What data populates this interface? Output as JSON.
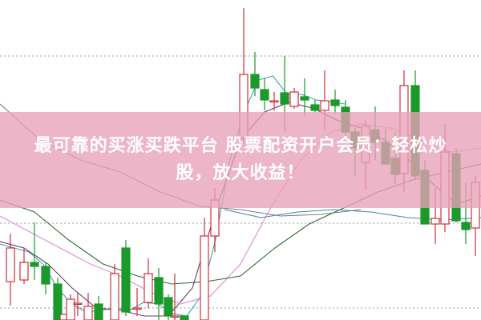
{
  "banner": {
    "line1": "最可靠的买涨买跌平台 股票配资开户会员：轻松炒",
    "line2": "股，放大收益！"
  },
  "chart_data": {
    "type": "candlestick",
    "title": "",
    "xlabel": "",
    "ylabel": "",
    "ylim": [
      0,
      100
    ],
    "grid": "dotted horizontal",
    "colors": {
      "up": "#d0303a",
      "down": "#1a9a2a",
      "ma_short": "#3aa6b0",
      "ma_mid": "#6a3a6a",
      "ma_20": "#e08ad8",
      "ma_30": "#2f6a3a",
      "ma_long": "#7a7a8a",
      "ma_flat": "#3a8aa0",
      "banner": "#e8a0b9"
    },
    "gridlines": [
      82.5,
      30.25,
      3.75
    ],
    "candles": [
      {
        "o": 12,
        "c": 22.5,
        "h": 27,
        "l": 4.5
      },
      {
        "o": 12.5,
        "c": 18,
        "h": 22.5,
        "l": 11.25
      },
      {
        "o": 18,
        "c": 16.75,
        "h": 30.5,
        "l": 12.5
      },
      {
        "o": 16.75,
        "c": 11.25,
        "h": 18,
        "l": 8
      },
      {
        "o": 11.25,
        "c": 0,
        "h": 13.25,
        "l": 0
      },
      {
        "o": 0,
        "c": 1.75,
        "h": 1.75,
        "l": 0
      },
      {
        "o": 0,
        "c": 6.5,
        "h": 8,
        "l": 0
      },
      {
        "o": 5.25,
        "c": 5.25,
        "h": 8.5,
        "l": 1.25
      },
      {
        "o": 0,
        "c": 4.25,
        "h": 8.5,
        "l": 0
      },
      {
        "o": 5,
        "c": 0,
        "h": 7.5,
        "l": 0
      },
      {
        "o": 0,
        "c": 14.5,
        "h": 17.5,
        "l": 0
      },
      {
        "o": 22.5,
        "c": 2.5,
        "h": 25,
        "l": 1.25
      },
      {
        "o": 3.75,
        "c": 3.75,
        "h": 10,
        "l": 1.25
      },
      {
        "o": 5.5,
        "c": 14.5,
        "h": 19.25,
        "l": 3.75
      },
      {
        "o": 13.25,
        "c": 5,
        "h": 16.25,
        "l": 0
      },
      {
        "o": 7,
        "c": 1.25,
        "h": 8,
        "l": 0
      },
      {
        "o": 1.25,
        "c": 1.25,
        "h": 14.5,
        "l": 0
      },
      {
        "o": 1.25,
        "c": 0,
        "h": 1.25,
        "l": 0
      },
      {
        "o": 0,
        "c": 26.25,
        "h": 32,
        "l": 0
      },
      {
        "o": 26.25,
        "c": 37.5,
        "h": 41.25,
        "l": 21.25
      },
      {
        "o": 57,
        "c": 76.75,
        "h": 97.5,
        "l": 55
      },
      {
        "o": 76.75,
        "c": 72.5,
        "h": 83.75,
        "l": 70
      },
      {
        "o": 72,
        "c": 68.75,
        "h": 75.5,
        "l": 65.5
      },
      {
        "o": 68.5,
        "c": 68.5,
        "h": 71.25,
        "l": 65.5
      },
      {
        "o": 71,
        "c": 67.5,
        "h": 82.5,
        "l": 58.75
      },
      {
        "o": 66.75,
        "c": 71.25,
        "h": 72.5,
        "l": 66
      },
      {
        "o": 69.75,
        "c": 68.75,
        "h": 75.5,
        "l": 63.75
      },
      {
        "o": 67.25,
        "c": 65.5,
        "h": 68.75,
        "l": 65
      },
      {
        "o": 65.5,
        "c": 68.5,
        "h": 78,
        "l": 59.25
      },
      {
        "o": 68.75,
        "c": 67,
        "h": 72,
        "l": 64.5
      },
      {
        "o": 66.5,
        "c": 58.75,
        "h": 68.75,
        "l": 57.5
      },
      {
        "o": 58.75,
        "c": 53.75,
        "h": 60,
        "l": 45
      },
      {
        "o": 49.25,
        "c": 60.5,
        "h": 62.5,
        "l": 40.5
      },
      {
        "o": 59.5,
        "c": 55.5,
        "h": 66.75,
        "l": 50
      },
      {
        "o": 55.5,
        "c": 48.75,
        "h": 60,
        "l": 48.75
      },
      {
        "o": 50.5,
        "c": 45.5,
        "h": 58.75,
        "l": 42.5
      },
      {
        "o": 45.75,
        "c": 73.25,
        "h": 78,
        "l": 40
      },
      {
        "o": 73.25,
        "c": 45,
        "h": 78,
        "l": 43.75
      },
      {
        "o": 46.75,
        "c": 30,
        "h": 50,
        "l": 30
      },
      {
        "o": 30,
        "c": 31.75,
        "h": 41.25,
        "l": 23.75
      },
      {
        "o": 30,
        "c": 52.5,
        "h": 61.25,
        "l": 27.5
      },
      {
        "o": 52,
        "c": 31,
        "h": 53.75,
        "l": 30.5
      },
      {
        "o": 30.5,
        "c": 28.25,
        "h": 43,
        "l": 23.75
      },
      {
        "o": 28.75,
        "c": 43,
        "h": 45,
        "l": 20
      }
    ],
    "moving_averages": [
      {
        "key": "ma_short",
        "values": [
          23.75,
          22.5,
          21.25,
          17.5,
          10,
          5,
          2.5,
          3,
          3.75,
          3,
          5.5,
          5,
          2,
          1.25,
          7.5,
          25,
          50,
          65,
          75,
          76.25,
          70.5,
          70.5,
          68.75,
          68.25,
          67.5
        ]
      },
      {
        "key": "ma_mid",
        "values": [
          24.5,
          22.5,
          17.5,
          10,
          3.75,
          3,
          1.25,
          1.25,
          10,
          35,
          56.25,
          65,
          68,
          66.25,
          62.5,
          60,
          56.25,
          50,
          42.5,
          36.25,
          38.75
        ]
      },
      {
        "key": "ma_20",
        "values": [
          32.5,
          27.5,
          22.5,
          17.5,
          13.75,
          8.75,
          5,
          7.5,
          17.5,
          35,
          50,
          58.75,
          61.25,
          60,
          56.25,
          52.5,
          53.75
        ]
      },
      {
        "key": "ma_30",
        "values": [
          37.5,
          33.75,
          25,
          17.5,
          13.75,
          11.25,
          12,
          13.75,
          22.5,
          30,
          35,
          40,
          43.75,
          46.25,
          48.75
        ]
      },
      {
        "key": "ma_long",
        "values": [
          67.5,
          56.25,
          50,
          46.25,
          40,
          35.5,
          34.5,
          32.5,
          33,
          34.5
        ]
      },
      {
        "key": "ma_flat",
        "values": [
          34.5,
          32,
          33.75,
          34.5,
          33.75,
          32,
          31.25,
          32
        ]
      }
    ]
  }
}
